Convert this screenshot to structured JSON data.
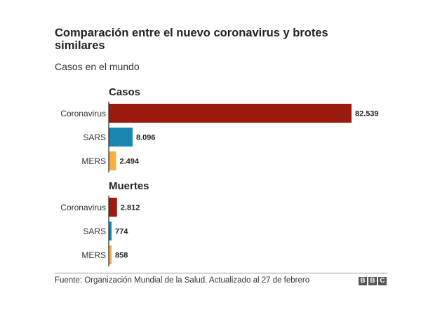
{
  "chart_data": {
    "type": "bar",
    "orientation": "horizontal",
    "title": "Comparación entre el nuevo coronavirus y brotes similares",
    "subtitle": "Casos en el mundo",
    "panels": [
      {
        "name": "Casos",
        "categories": [
          "Coronavirus",
          "SARS",
          "MERS"
        ],
        "values": [
          82539,
          8096,
          2494
        ],
        "value_labels": [
          "82.539",
          "8.096",
          "2.494"
        ]
      },
      {
        "name": "Muertes",
        "categories": [
          "Coronavirus",
          "SARS",
          "MERS"
        ],
        "values": [
          2812,
          774,
          858
        ],
        "value_labels": [
          "2.812",
          "774",
          "858"
        ]
      }
    ],
    "colors": [
      "#9b1b0e",
      "#1b86b0",
      "#f2b13c"
    ],
    "axis_color": "#222222",
    "xlim": [
      0,
      82539
    ],
    "grid": false,
    "legend": "none"
  },
  "footer": {
    "source": "Fuente: Organización Mundial de la Salud. Actualizado al 27 de febrero",
    "logo": [
      "B",
      "B",
      "C"
    ]
  }
}
